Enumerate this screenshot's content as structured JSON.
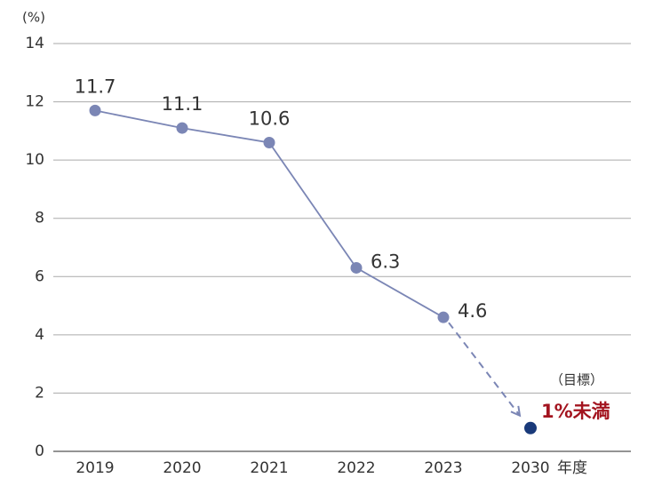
{
  "chart_data": {
    "type": "line",
    "y_label": "(%)",
    "x_label": "年度",
    "categories": [
      "2019",
      "2020",
      "2021",
      "2022",
      "2023",
      "2030"
    ],
    "series": [
      {
        "color": "#7b86b5",
        "values": [
          11.7,
          11.1,
          10.6,
          6.3,
          4.6,
          null
        ]
      }
    ],
    "target": {
      "value": 0.8,
      "color": "#1a3a7a",
      "label": "1%未満",
      "label_color": "#a3141f",
      "note": "（目標）"
    },
    "ylim": [
      0,
      14
    ],
    "yticks": [
      0,
      2,
      4,
      6,
      8,
      10,
      12,
      14
    ],
    "grid": true
  }
}
